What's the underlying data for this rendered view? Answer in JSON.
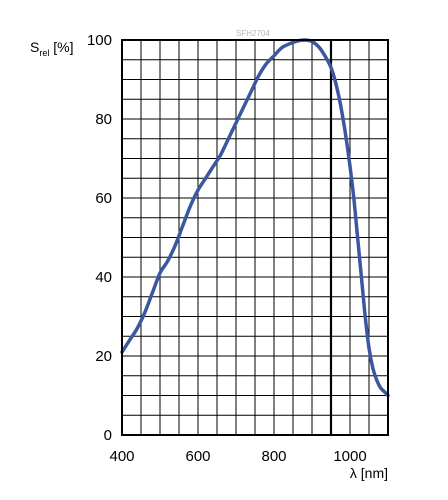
{
  "chart_data": {
    "type": "line",
    "watermark": "SFH2704",
    "ylabel": {
      "main": "S",
      "sub": "rel",
      "unit": " [%]"
    },
    "xlabel": "λ [nm]",
    "xlim": [
      400,
      1100
    ],
    "ylim": [
      0,
      100
    ],
    "x_ticks": [
      400,
      600,
      800,
      1000
    ],
    "y_ticks": [
      0,
      20,
      40,
      60,
      80,
      100
    ],
    "x_minor_step": 50,
    "y_minor_step": 5,
    "grid": true,
    "highlight_line_x": 950,
    "line_color": "#3b57a0",
    "series": [
      {
        "x": [
          400,
          420,
          440,
          460,
          480,
          500,
          520,
          540,
          560,
          580,
          600,
          620,
          640,
          660,
          680,
          700,
          720,
          740,
          760,
          780,
          800,
          820,
          840,
          860,
          880,
          900,
          920,
          940,
          950,
          960,
          970,
          980,
          990,
          1000,
          1010,
          1020,
          1030,
          1040,
          1050,
          1060,
          1070,
          1080,
          1090,
          1100
        ],
        "y": [
          21,
          24,
          27,
          31,
          36,
          41,
          44,
          48,
          53,
          58,
          62,
          65,
          68,
          71,
          75,
          79,
          83,
          87,
          91,
          94,
          96,
          98,
          99,
          99.7,
          100,
          99.6,
          98,
          95,
          93,
          90,
          86,
          81,
          75,
          68,
          60,
          50,
          40,
          30,
          22,
          17,
          14,
          12,
          11,
          10
        ]
      }
    ]
  }
}
